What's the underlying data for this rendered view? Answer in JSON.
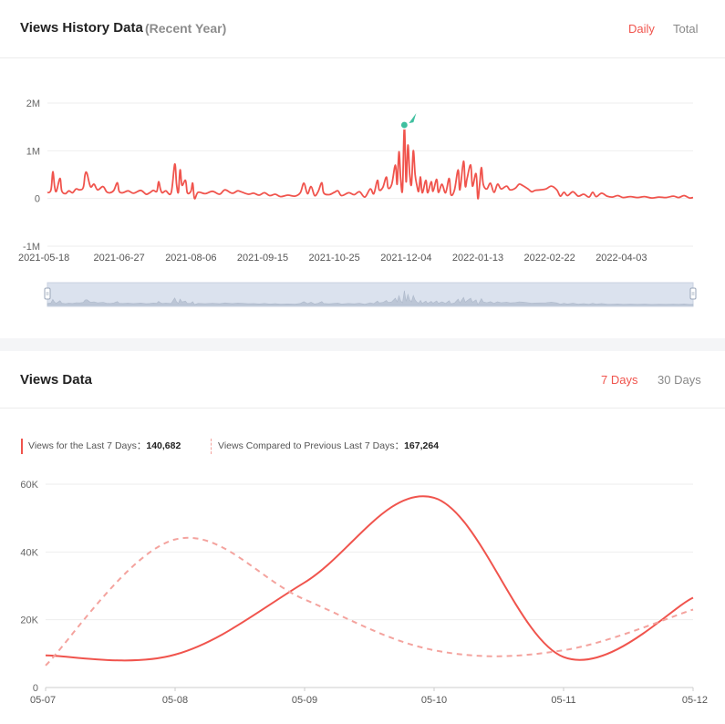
{
  "history": {
    "title": "Views History Data",
    "subtitle": "(Recent Year)",
    "toggles": [
      {
        "label": "Daily",
        "active": true
      },
      {
        "label": "Total",
        "active": false
      }
    ]
  },
  "views": {
    "title": "Views Data",
    "toggles": [
      {
        "label": "7 Days",
        "active": true
      },
      {
        "label": "30 Days",
        "active": false
      }
    ],
    "legend": [
      {
        "label": "Views for the Last 7 Days：",
        "value": "140,682"
      },
      {
        "label": "Views Compared to Previous Last 7 Days：",
        "value": "167,264"
      }
    ]
  },
  "colors": {
    "accent": "#f0544d",
    "accent_light": "#f4a39e",
    "marker": "#3fbf9f",
    "slider_fill": "#dbe2ee"
  },
  "chart_data": [
    {
      "type": "line",
      "title": "Views History Data",
      "x_start": "2021-05-18",
      "x_end": "2022-05-13",
      "x_tick_labels": [
        "2021-05-18",
        "2021-06-27",
        "2021-08-06",
        "2021-09-15",
        "2021-10-25",
        "2021-12-04",
        "2022-01-13",
        "2022-02-22",
        "2022-04-03"
      ],
      "y_tick_labels": [
        "2M",
        "1M",
        "0",
        "-1M"
      ],
      "ylim": [
        -1000000,
        2000000
      ],
      "grid": true,
      "peak": {
        "date": "2021-12-03",
        "value": 1520000
      },
      "series": [
        {
          "points": [
            [
              "2021-05-18",
              120000
            ],
            [
              "2021-05-20",
              180000
            ],
            [
              "2021-05-21",
              560000
            ],
            [
              "2021-05-22",
              250000
            ],
            [
              "2021-05-23",
              150000
            ],
            [
              "2021-05-25",
              420000
            ],
            [
              "2021-05-26",
              160000
            ],
            [
              "2021-05-28",
              100000
            ],
            [
              "2021-05-30",
              160000
            ],
            [
              "2021-06-01",
              120000
            ],
            [
              "2021-06-03",
              200000
            ],
            [
              "2021-06-05",
              180000
            ],
            [
              "2021-06-07",
              230000
            ],
            [
              "2021-06-08",
              500000
            ],
            [
              "2021-06-09",
              530000
            ],
            [
              "2021-06-11",
              250000
            ],
            [
              "2021-06-13",
              300000
            ],
            [
              "2021-06-15",
              180000
            ],
            [
              "2021-06-18",
              250000
            ],
            [
              "2021-06-20",
              140000
            ],
            [
              "2021-06-22",
              120000
            ],
            [
              "2021-06-24",
              170000
            ],
            [
              "2021-06-26",
              330000
            ],
            [
              "2021-06-27",
              150000
            ],
            [
              "2021-06-29",
              120000
            ],
            [
              "2021-07-02",
              160000
            ],
            [
              "2021-07-05",
              110000
            ],
            [
              "2021-07-09",
              170000
            ],
            [
              "2021-07-12",
              90000
            ],
            [
              "2021-07-14",
              120000
            ],
            [
              "2021-07-16",
              170000
            ],
            [
              "2021-07-18",
              150000
            ],
            [
              "2021-07-19",
              350000
            ],
            [
              "2021-07-20",
              200000
            ],
            [
              "2021-07-21",
              120000
            ],
            [
              "2021-07-23",
              160000
            ],
            [
              "2021-07-26",
              120000
            ],
            [
              "2021-07-28",
              720000
            ],
            [
              "2021-07-29",
              300000
            ],
            [
              "2021-07-30",
              130000
            ],
            [
              "2021-07-31",
              600000
            ],
            [
              "2021-08-01",
              280000
            ],
            [
              "2021-08-03",
              380000
            ],
            [
              "2021-08-04",
              120000
            ],
            [
              "2021-08-06",
              150000
            ],
            [
              "2021-08-07",
              320000
            ],
            [
              "2021-08-08",
              0
            ],
            [
              "2021-08-10",
              130000
            ],
            [
              "2021-08-14",
              100000
            ],
            [
              "2021-08-18",
              150000
            ],
            [
              "2021-08-22",
              90000
            ],
            [
              "2021-08-25",
              180000
            ],
            [
              "2021-08-29",
              110000
            ],
            [
              "2021-09-01",
              160000
            ],
            [
              "2021-09-03",
              140000
            ],
            [
              "2021-09-07",
              90000
            ],
            [
              "2021-09-10",
              110000
            ],
            [
              "2021-09-13",
              70000
            ],
            [
              "2021-09-16",
              120000
            ],
            [
              "2021-09-19",
              60000
            ],
            [
              "2021-09-22",
              90000
            ],
            [
              "2021-09-25",
              40000
            ],
            [
              "2021-09-29",
              70000
            ],
            [
              "2021-10-03",
              50000
            ],
            [
              "2021-10-06",
              120000
            ],
            [
              "2021-10-08",
              320000
            ],
            [
              "2021-10-10",
              100000
            ],
            [
              "2021-10-12",
              250000
            ],
            [
              "2021-10-14",
              60000
            ],
            [
              "2021-10-16",
              150000
            ],
            [
              "2021-10-18",
              330000
            ],
            [
              "2021-10-19",
              120000
            ],
            [
              "2021-10-22",
              80000
            ],
            [
              "2021-10-25",
              130000
            ],
            [
              "2021-10-27",
              160000
            ],
            [
              "2021-10-29",
              60000
            ],
            [
              "2021-11-02",
              120000
            ],
            [
              "2021-11-05",
              80000
            ],
            [
              "2021-11-08",
              140000
            ],
            [
              "2021-11-11",
              30000
            ],
            [
              "2021-11-14",
              200000
            ],
            [
              "2021-11-16",
              100000
            ],
            [
              "2021-11-18",
              380000
            ],
            [
              "2021-11-19",
              180000
            ],
            [
              "2021-11-21",
              230000
            ],
            [
              "2021-11-23",
              450000
            ],
            [
              "2021-11-24",
              220000
            ],
            [
              "2021-11-26",
              300000
            ],
            [
              "2021-11-28",
              700000
            ],
            [
              "2021-11-29",
              300000
            ],
            [
              "2021-11-30",
              980000
            ],
            [
              "2021-12-01",
              400000
            ],
            [
              "2021-12-02",
              200000
            ],
            [
              "2021-12-03",
              1520000
            ],
            [
              "2021-12-04",
              350000
            ],
            [
              "2021-12-05",
              1120000
            ],
            [
              "2021-12-06",
              500000
            ],
            [
              "2021-12-07",
              300000
            ],
            [
              "2021-12-08",
              1000000
            ],
            [
              "2021-12-09",
              500000
            ],
            [
              "2021-12-10",
              280000
            ],
            [
              "2021-12-11",
              150000
            ],
            [
              "2021-12-12",
              450000
            ],
            [
              "2021-12-13",
              120000
            ],
            [
              "2021-12-15",
              380000
            ],
            [
              "2021-12-16",
              120000
            ],
            [
              "2021-12-18",
              350000
            ],
            [
              "2021-12-19",
              150000
            ],
            [
              "2021-12-21",
              400000
            ],
            [
              "2021-12-22",
              130000
            ],
            [
              "2021-12-24",
              300000
            ],
            [
              "2021-12-26",
              120000
            ],
            [
              "2021-12-28",
              420000
            ],
            [
              "2021-12-29",
              80000
            ],
            [
              "2021-12-31",
              180000
            ],
            [
              "2022-01-02",
              600000
            ],
            [
              "2022-01-03",
              180000
            ],
            [
              "2022-01-05",
              780000
            ],
            [
              "2022-01-06",
              260000
            ],
            [
              "2022-01-07",
              420000
            ],
            [
              "2022-01-09",
              700000
            ],
            [
              "2022-01-10",
              260000
            ],
            [
              "2022-01-12",
              520000
            ],
            [
              "2022-01-13",
              0
            ],
            [
              "2022-01-14",
              300000
            ],
            [
              "2022-01-15",
              650000
            ],
            [
              "2022-01-16",
              300000
            ],
            [
              "2022-01-18",
              200000
            ],
            [
              "2022-01-20",
              320000
            ],
            [
              "2022-01-22",
              130000
            ],
            [
              "2022-01-24",
              300000
            ],
            [
              "2022-01-26",
              200000
            ],
            [
              "2022-01-29",
              260000
            ],
            [
              "2022-01-31",
              180000
            ],
            [
              "2022-02-03",
              220000
            ],
            [
              "2022-02-05",
              300000
            ],
            [
              "2022-02-07",
              270000
            ],
            [
              "2022-02-10",
              200000
            ],
            [
              "2022-02-12",
              140000
            ],
            [
              "2022-02-14",
              170000
            ],
            [
              "2022-02-17",
              180000
            ],
            [
              "2022-02-20",
              200000
            ],
            [
              "2022-02-23",
              260000
            ],
            [
              "2022-02-26",
              180000
            ],
            [
              "2022-02-28",
              50000
            ],
            [
              "2022-03-02",
              130000
            ],
            [
              "2022-03-04",
              60000
            ],
            [
              "2022-03-07",
              140000
            ],
            [
              "2022-03-10",
              50000
            ],
            [
              "2022-03-13",
              90000
            ],
            [
              "2022-03-16",
              30000
            ],
            [
              "2022-03-18",
              130000
            ],
            [
              "2022-03-20",
              40000
            ],
            [
              "2022-03-23",
              110000
            ],
            [
              "2022-03-26",
              50000
            ],
            [
              "2022-03-29",
              30000
            ],
            [
              "2022-04-01",
              60000
            ],
            [
              "2022-04-04",
              20000
            ],
            [
              "2022-04-08",
              40000
            ],
            [
              "2022-04-12",
              20000
            ],
            [
              "2022-04-16",
              40000
            ],
            [
              "2022-04-20",
              10000
            ],
            [
              "2022-04-24",
              30000
            ],
            [
              "2022-04-28",
              20000
            ],
            [
              "2022-05-02",
              50000
            ],
            [
              "2022-05-05",
              20000
            ],
            [
              "2022-05-08",
              60000
            ],
            [
              "2022-05-11",
              10000
            ],
            [
              "2022-05-13",
              20000
            ]
          ]
        }
      ]
    },
    {
      "type": "line",
      "title": "Views Data",
      "categories": [
        "05-07",
        "05-08",
        "05-09",
        "05-10",
        "05-11",
        "05-12"
      ],
      "y_tick_labels": [
        "60K",
        "40K",
        "20K",
        "0"
      ],
      "ylim": [
        0,
        60000
      ],
      "grid": true,
      "legend_position": "top-left",
      "series": [
        {
          "name": "Views for the Last 7 Days",
          "style": "solid",
          "values": [
            9500,
            9700,
            31000,
            56000,
            9000,
            26500
          ]
        },
        {
          "name": "Views Compared to Previous Last 7 Days",
          "style": "dashed",
          "values": [
            6500,
            43700,
            26000,
            11000,
            11000,
            23000
          ]
        }
      ]
    }
  ]
}
